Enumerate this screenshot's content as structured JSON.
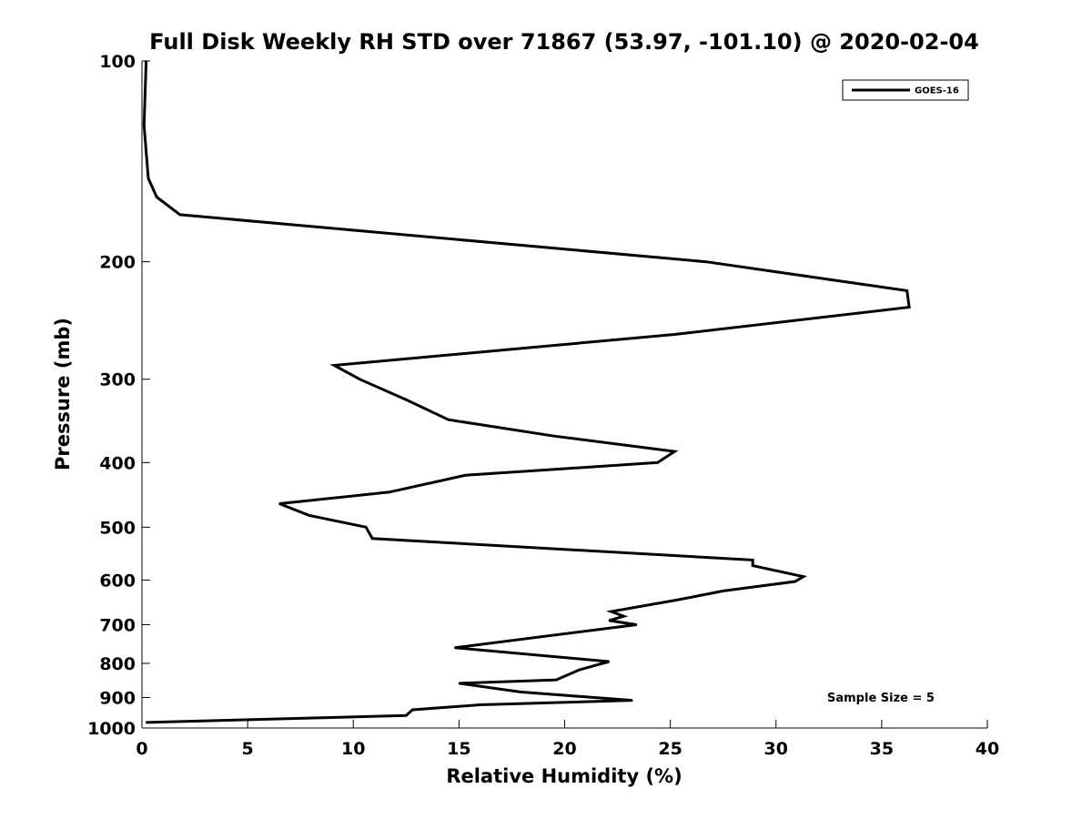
{
  "chart_data": {
    "type": "line",
    "title": "Full Disk Weekly RH STD over 71867 (53.97, -101.10) @ 2020-02-04",
    "xlabel": "Relative Humidity (%)",
    "ylabel": "Pressure (mb)",
    "xlim": [
      0,
      40
    ],
    "ylim": [
      1000,
      100
    ],
    "y_scale": "log",
    "grid": false,
    "legend_position": "top-right",
    "x_ticks": [
      0,
      5,
      10,
      15,
      20,
      25,
      30,
      35,
      40
    ],
    "y_ticks": [
      100,
      200,
      300,
      400,
      500,
      600,
      700,
      800,
      900,
      1000
    ],
    "annotation": "Sample Size = 5",
    "series": [
      {
        "name": "GOES-16",
        "color": "#000000",
        "x": [
          0.2,
          0.1,
          0.3,
          0.7,
          1.8,
          26.7,
          36.2,
          36.3,
          25.2,
          9.1,
          10.3,
          12.5,
          14.5,
          19.5,
          25.2,
          24.4,
          15.3,
          11.7,
          6.5,
          7.9,
          10.6,
          10.9,
          28.9,
          28.9,
          31.3,
          30.9,
          27.5,
          25.3,
          22.2,
          22.8,
          22.1,
          23.4,
          14.8,
          22.1,
          20.7,
          19.6,
          15.0,
          17.9,
          23.2,
          16.0,
          12.8,
          12.5,
          0.2
        ],
        "y": [
          100,
          125,
          150,
          160,
          170,
          200,
          221,
          234,
          257,
          286,
          300,
          322,
          345,
          365,
          385,
          400,
          418,
          443,
          461,
          480,
          500,
          520,
          560,
          571,
          593,
          603,
          623,
          643,
          669,
          680,
          690,
          700,
          758,
          795,
          818,
          847,
          857,
          883,
          909,
          923,
          939,
          958,
          981
        ]
      }
    ]
  }
}
